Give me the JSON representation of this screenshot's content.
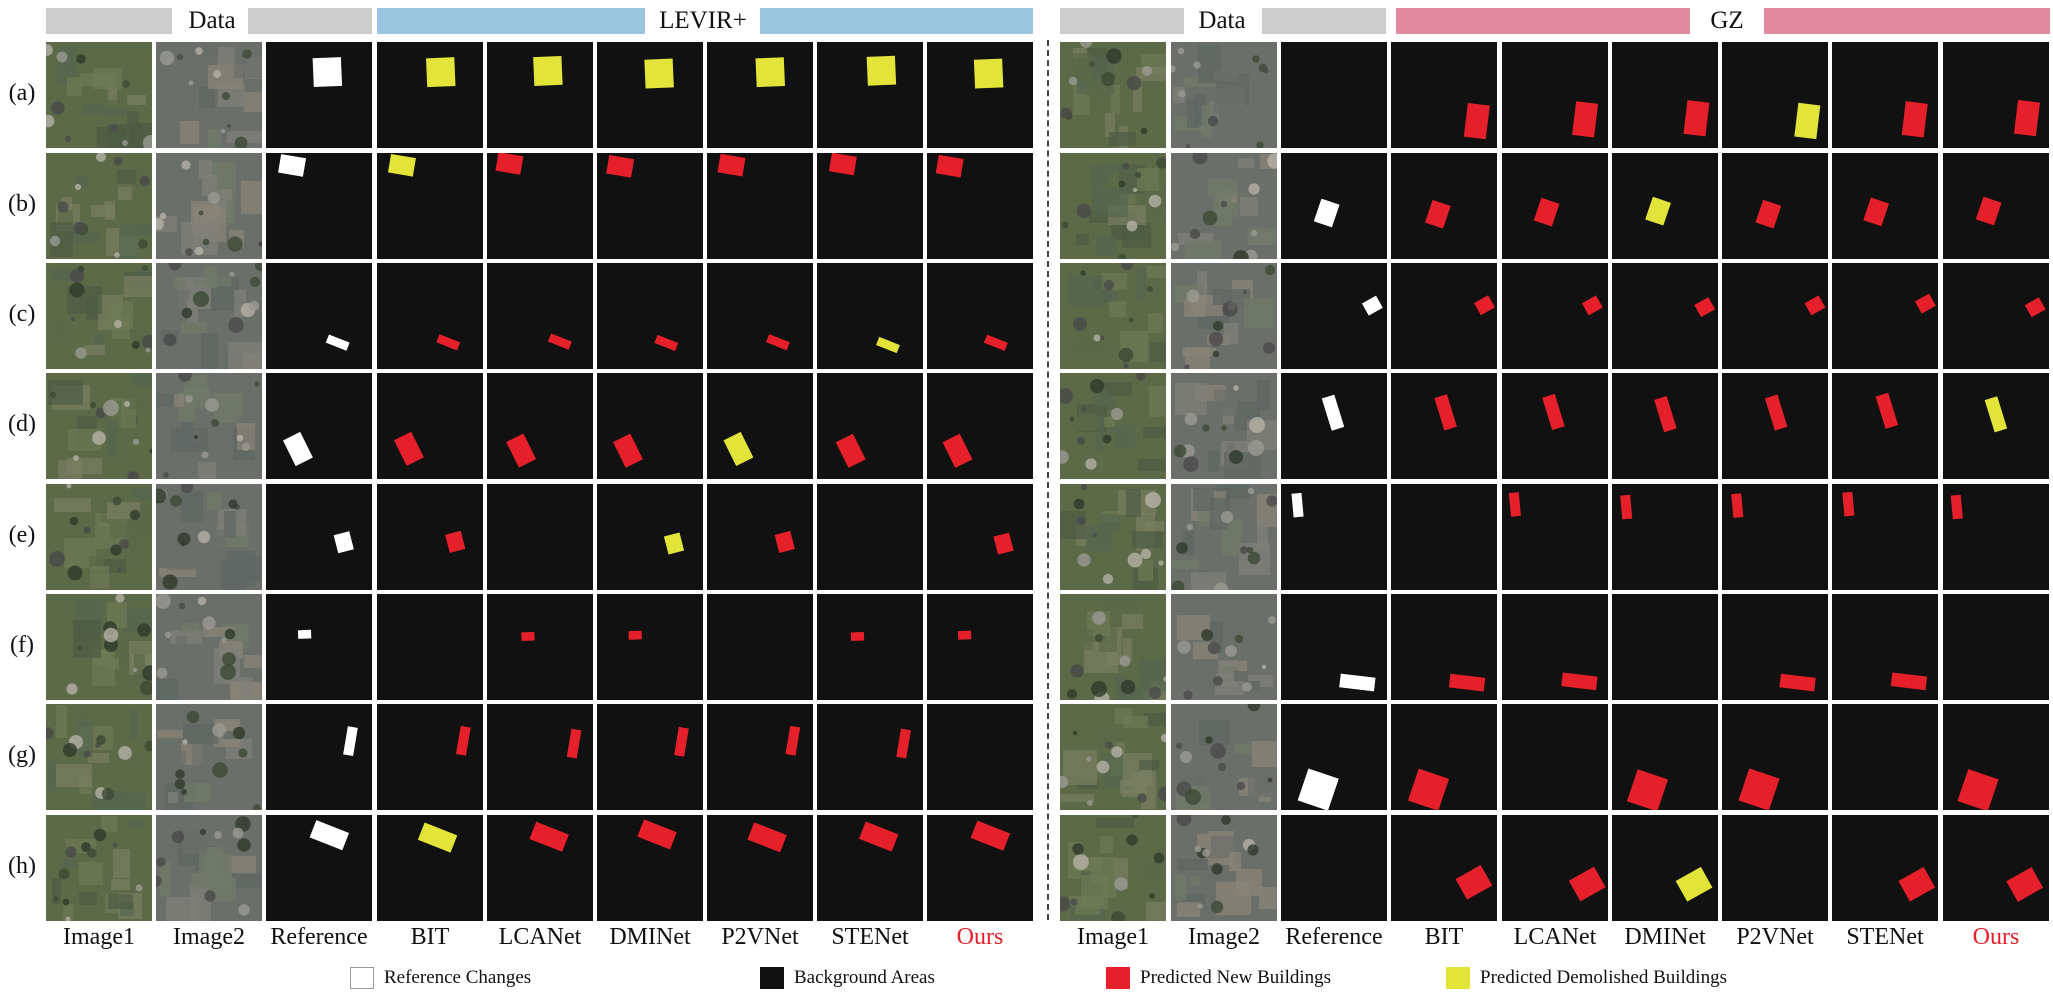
{
  "header": {
    "left_data": "Data",
    "left_dataset": "LEVIR+",
    "right_data": "Data",
    "right_dataset": "GZ",
    "colors": {
      "gray": "#cccccc",
      "levir": "#9cc5e0",
      "gz": "#e08aa0"
    }
  },
  "rows": [
    "(a)",
    "(b)",
    "(c)",
    "(d)",
    "(e)",
    "(f)",
    "(g)",
    "(h)"
  ],
  "columns_left": [
    "Image1",
    "Image2",
    "Reference",
    "BIT",
    "LCANet",
    "DMINet",
    "P2VNet",
    "STENet",
    "Ours"
  ],
  "columns_right": [
    "Image1",
    "Image2",
    "Reference",
    "BIT",
    "LCANet",
    "DMINet",
    "P2VNet",
    "STENet",
    "Ours"
  ],
  "legend": {
    "reference": "Reference Changes",
    "background": "Background Areas",
    "new": "Predicted New Buildings",
    "demolished": "Predicted Demolished Buildings"
  },
  "palette": {
    "background": "#111111",
    "reference": "#ffffff",
    "new": "#e5202a",
    "demolished": "#e2e43a",
    "ours_text": "#e5202a"
  },
  "image_icon": "aerial-photo",
  "map_icon": "change-map"
}
